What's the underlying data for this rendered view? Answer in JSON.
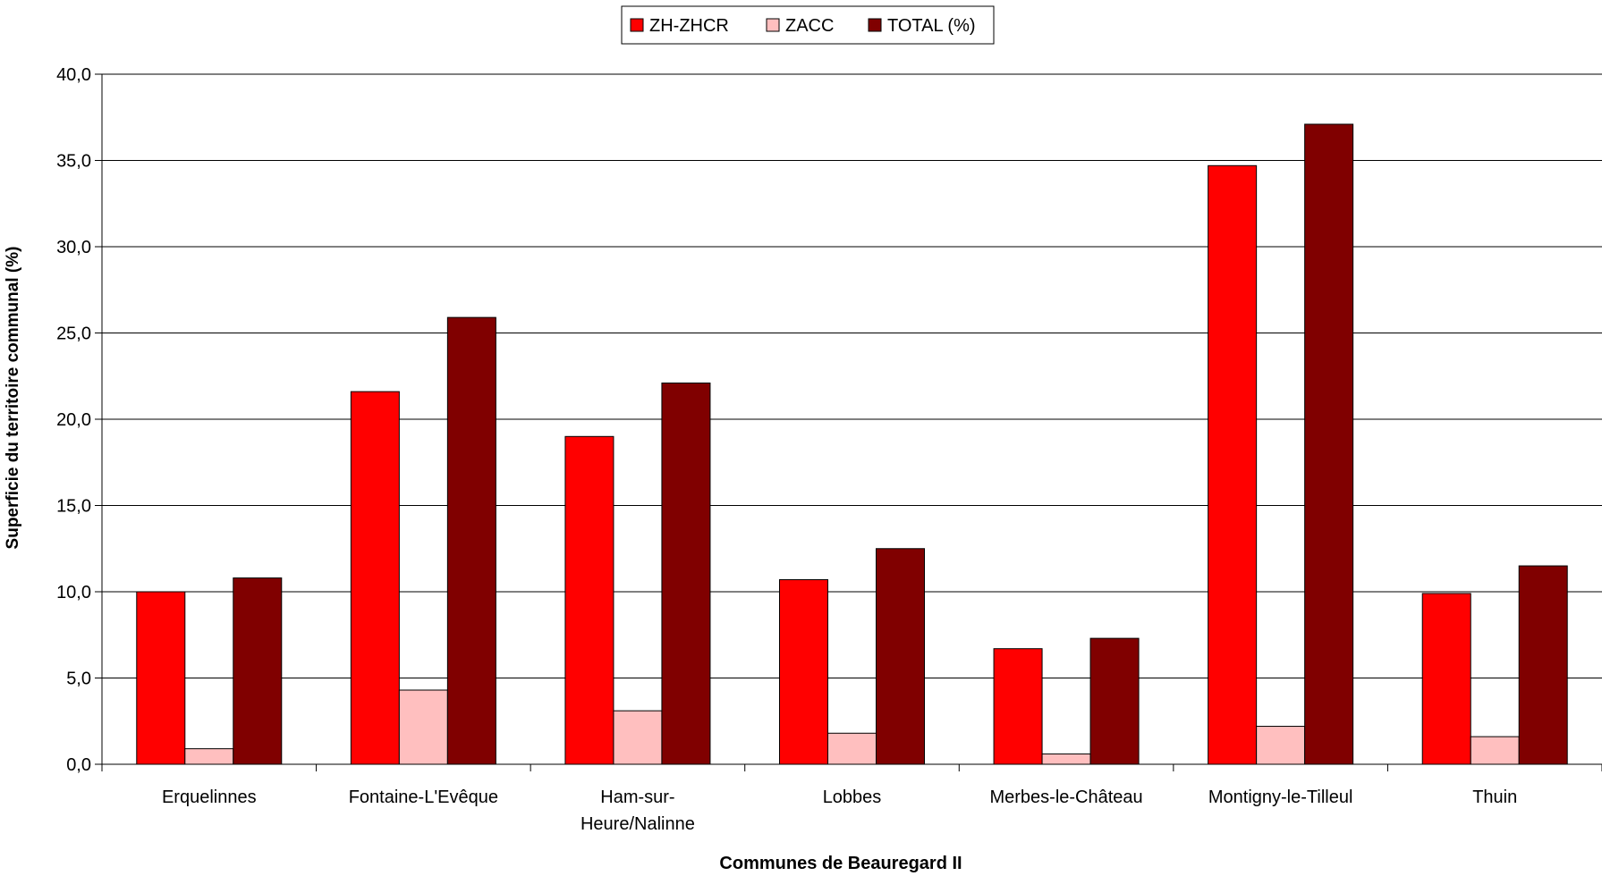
{
  "chart_data": {
    "type": "bar",
    "categories": [
      [
        "Erquelinnes"
      ],
      [
        "Fontaine-L'Evêque"
      ],
      [
        "Ham-sur-",
        "Heure/Nalinne"
      ],
      [
        "Lobbes"
      ],
      [
        "Merbes-le-Château"
      ],
      [
        "Montigny-le-Tilleul"
      ],
      [
        "Thuin"
      ]
    ],
    "series": [
      {
        "name": "ZH-ZHCR",
        "color": "#FF0000",
        "values": [
          10.0,
          21.6,
          19.0,
          10.7,
          6.7,
          34.7,
          9.9
        ]
      },
      {
        "name": "ZACC",
        "color": "#FFBFBF",
        "values": [
          0.9,
          4.3,
          3.1,
          1.8,
          0.6,
          2.2,
          1.6
        ]
      },
      {
        "name": "TOTAL (%)",
        "color": "#800000",
        "values": [
          10.8,
          25.9,
          22.1,
          12.5,
          7.3,
          37.1,
          11.5
        ]
      }
    ],
    "xlabel": "Communes de Beauregard II",
    "ylabel": "Superficie du territoire communal (%)",
    "ylim": [
      0,
      40
    ],
    "yticks": [
      "0,0",
      "5,0",
      "10,0",
      "15,0",
      "20,0",
      "25,0",
      "30,0",
      "35,0",
      "40,0"
    ],
    "grid": true,
    "legend_position": "top-center"
  }
}
